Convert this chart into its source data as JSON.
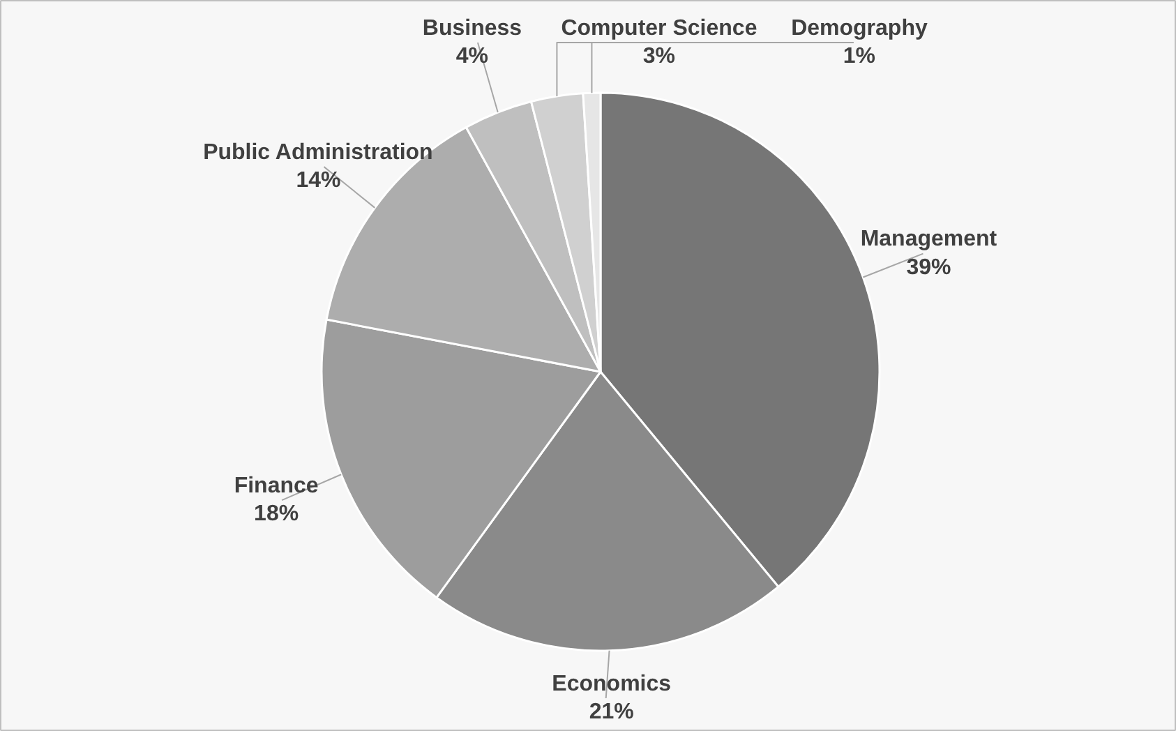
{
  "chart_data": {
    "type": "pie",
    "categories": [
      "Management",
      "Economics",
      "Finance",
      "Public Administration",
      "Business",
      "Computer Science",
      "Demography"
    ],
    "values": [
      39,
      21,
      18,
      14,
      4,
      3,
      1
    ],
    "value_labels": [
      "39%",
      "21%",
      "18%",
      "14%",
      "4%",
      "3%",
      "1%"
    ],
    "colors": [
      "#767676",
      "#8a8a8a",
      "#9d9d9d",
      "#adadad",
      "#bfbfbf",
      "#d0d0d0",
      "#e6e6e6"
    ]
  }
}
